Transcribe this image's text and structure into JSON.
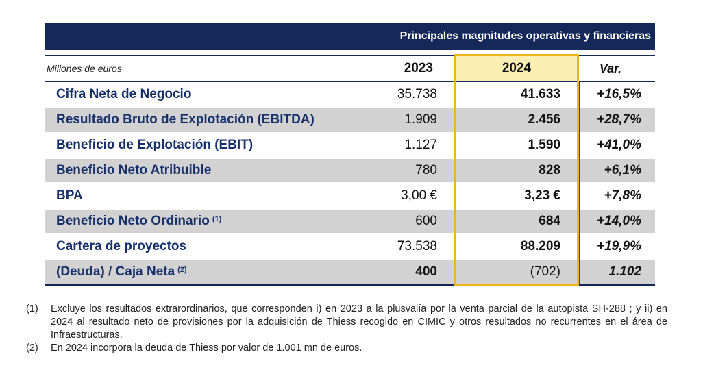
{
  "table": {
    "header_title": "Principales magnitudes operativas y financieras",
    "units_label": "Millones de euros",
    "col_2023": "2023",
    "col_2024": "2024",
    "col_var": "Var.",
    "rows": [
      {
        "label": "Cifra Neta de Negocio",
        "sup": "",
        "v2023": "35.738",
        "v2024": "41.633",
        "var": "+16,5%"
      },
      {
        "label": "Resultado Bruto de Explotación (EBITDA)",
        "sup": "",
        "v2023": "1.909",
        "v2024": "2.456",
        "var": "+28,7%"
      },
      {
        "label": "Beneficio de Explotación (EBIT)",
        "sup": "",
        "v2023": "1.127",
        "v2024": "1.590",
        "var": "+41,0%"
      },
      {
        "label": "Beneficio Neto Atribuible",
        "sup": "",
        "v2023": "780",
        "v2024": "828",
        "var": "+6,1%"
      },
      {
        "label": "BPA",
        "sup": "",
        "v2023": "3,00 €",
        "v2024": "3,23 €",
        "var": "+7,8%"
      },
      {
        "label": "Beneficio Neto Ordinario",
        "sup": "(1)",
        "v2023": "600",
        "v2024": "684",
        "var": "+14,0%"
      },
      {
        "label": "Cartera de proyectos",
        "sup": "",
        "v2023": "73.538",
        "v2024": "88.209",
        "var": "+19,9%"
      },
      {
        "label": "(Deuda) / Caja Neta",
        "sup": "(2)",
        "v2023": "400",
        "v2024": "(702)",
        "var": "1.102"
      }
    ]
  },
  "notes": [
    {
      "num": "(1)",
      "text": "Excluye los resultados extrarordinarios, que corresponden i) en 2023 a la plusvalía por la venta parcial de la autopista SH-288 ; y ii) en 2024 al resultado neto de provisiones por la adquisición de Thiess recogido en CIMIC y otros resultados no recurrentes en el área de Infraestructuras."
    },
    {
      "num": "(2)",
      "text": "En 2024 incorpora la deuda de Thiess por valor de 1.001 mn de euros."
    }
  ],
  "colors": {
    "navy": "#15285a",
    "label_blue": "#17306b",
    "highlight_fill": "#fbeeb2",
    "highlight_border": "#f2b518",
    "row_shade": "#d3d2d2"
  }
}
